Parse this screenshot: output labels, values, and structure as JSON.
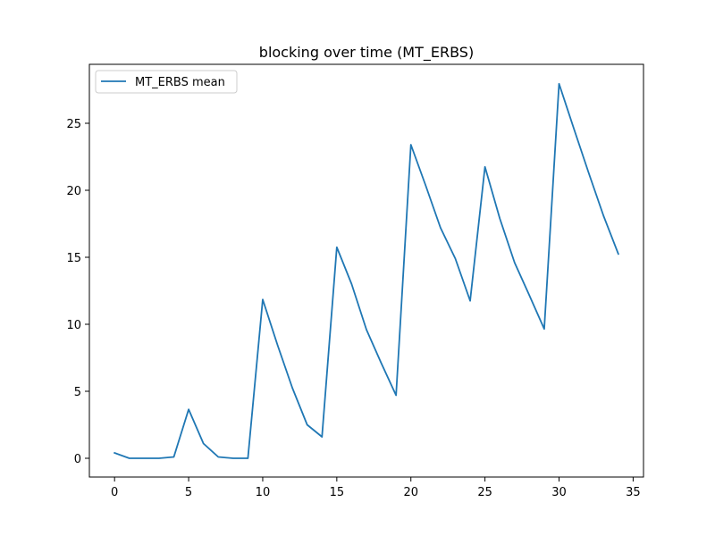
{
  "chart_data": {
    "type": "line",
    "title": "blocking over time (MT_ERBS)",
    "xlabel": "",
    "ylabel": "",
    "xlim": [
      -1.7,
      35.7
    ],
    "ylim": [
      -1.4,
      29.4
    ],
    "xticks": [
      0,
      5,
      10,
      15,
      20,
      25,
      30,
      35
    ],
    "yticks": [
      0,
      5,
      10,
      15,
      20,
      25
    ],
    "grid": false,
    "legend_position": "upper left",
    "series": [
      {
        "name": "MT_ERBS mean",
        "color": "#1f77b4",
        "x": [
          0,
          1,
          2,
          3,
          4,
          5,
          6,
          7,
          8,
          9,
          10,
          11,
          12,
          13,
          14,
          15,
          16,
          17,
          18,
          19,
          20,
          21,
          22,
          23,
          24,
          25,
          26,
          27,
          28,
          29,
          30,
          31,
          32,
          33,
          34
        ],
        "y": [
          0.4,
          0.0,
          0.0,
          0.0,
          0.1,
          3.65,
          1.1,
          0.1,
          0.0,
          0.0,
          11.85,
          8.45,
          5.25,
          2.5,
          1.6,
          15.75,
          13.0,
          9.6,
          7.1,
          4.7,
          23.4,
          20.35,
          17.2,
          14.9,
          11.75,
          21.75,
          17.9,
          14.6,
          12.15,
          9.65,
          27.95,
          24.6,
          21.3,
          18.1,
          15.25
        ]
      }
    ]
  }
}
